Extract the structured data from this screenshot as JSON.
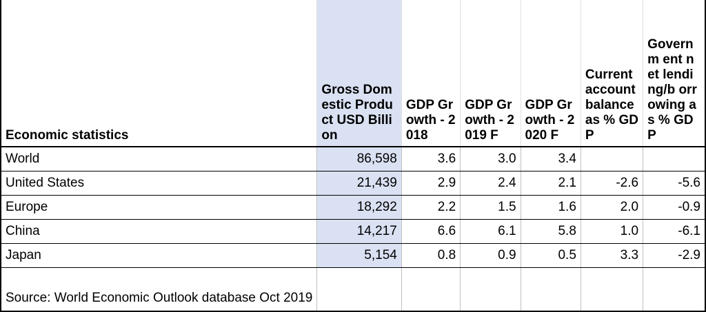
{
  "table": {
    "headers": [
      "Economic statistics",
      "Gross Domestic Product USD Billion",
      "GDP Growth - 2018",
      "GDP Growth - 2019 F",
      "GDP Growth - 2020 F",
      "Current account balance as % GDP",
      "Governm ent net lending/b orrowing as % GDP"
    ],
    "rows": [
      {
        "country": "World",
        "gdp": "86,598",
        "g2018": "3.6",
        "g2019": "3.0",
        "g2020": "3.4",
        "cab": "",
        "lending": ""
      },
      {
        "country": "United States",
        "gdp": "21,439",
        "g2018": "2.9",
        "g2019": "2.4",
        "g2020": "2.1",
        "cab": "-2.6",
        "lending": "-5.6"
      },
      {
        "country": "Europe",
        "gdp": "18,292",
        "g2018": "2.2",
        "g2019": "1.5",
        "g2020": "1.6",
        "cab": "2.0",
        "lending": "-0.9"
      },
      {
        "country": "China",
        "gdp": "14,217",
        "g2018": "6.6",
        "g2019": "6.1",
        "g2020": "5.8",
        "cab": "1.0",
        "lending": "-6.1"
      },
      {
        "country": "Japan",
        "gdp": "5,154",
        "g2018": "0.8",
        "g2019": "0.9",
        "g2020": "0.5",
        "cab": "3.3",
        "lending": "-2.9"
      }
    ],
    "source": "Source: World Economic Outlook database Oct 2019"
  },
  "colors": {
    "highlight": "#d9e1f2",
    "border": "#000000",
    "gridline": "#bfbfbf"
  }
}
